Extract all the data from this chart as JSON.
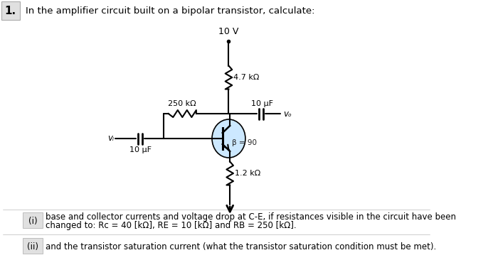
{
  "title": "In the amplifier circuit built on a bipolar transistor, calculate:",
  "number_label": "1.",
  "supply_voltage": "10 V",
  "rc_label": "4.7 kΩ",
  "rb_top_label": "250 kΩ",
  "cap_top_label": "10 μF",
  "beta_label": "β = 90",
  "cap_input_label": "10 μF",
  "re_label": "1.2 kΩ",
  "vi_label": "vᵢ",
  "vo_label": "vₒ",
  "item_i": "(i)",
  "item_ii": "(ii)",
  "text_i_line1": "base and collector currents and voltage drop at C-E, if resistances visible in the circuit have been",
  "text_i_line2": "changed to: Rc = 40 [kΩ], RE = 10 [kΩ] and RB = 250 [kΩ].",
  "text_ii": "and the transistor saturation current (what the transistor saturation condition must be met).",
  "bg_color": "#ffffff",
  "circuit_color": "#000000",
  "transistor_fill": "#cce8ff",
  "box_gray_face": "#e0e0e0",
  "box_gray_edge": "#aaaaaa"
}
